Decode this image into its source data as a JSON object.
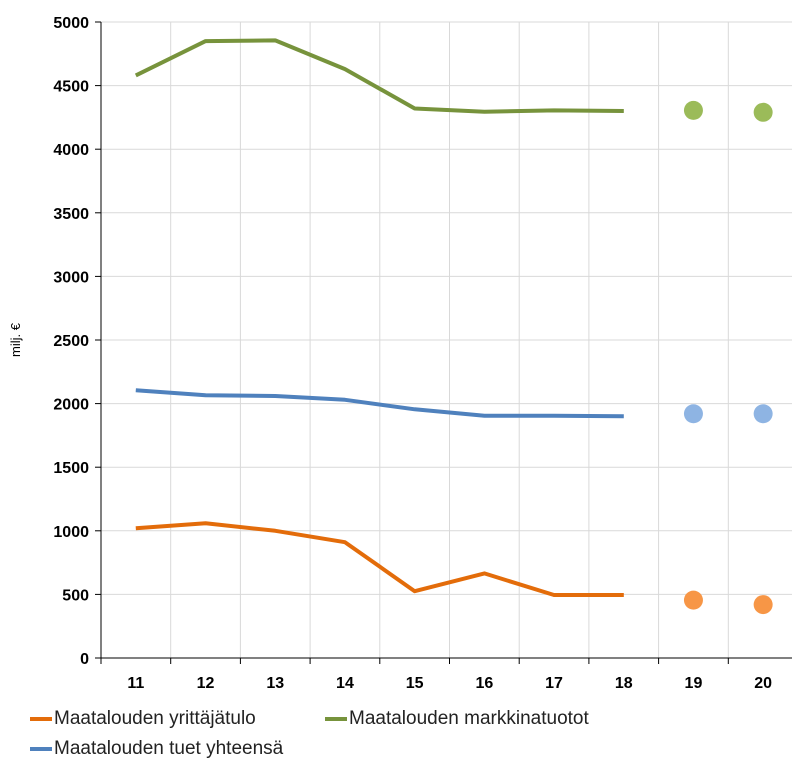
{
  "chart_data": {
    "type": "line",
    "categories": [
      "11",
      "12",
      "13",
      "14",
      "15",
      "16",
      "17",
      "18",
      "19",
      "20"
    ],
    "ylabel": "milj. €",
    "ylim": [
      0,
      5000
    ],
    "yticks": [
      0,
      500,
      1000,
      1500,
      2000,
      2500,
      3000,
      3500,
      4000,
      4500,
      5000
    ],
    "grid": true,
    "legend_position": "bottom",
    "series": [
      {
        "name": "Maatalouden yrittäjätulo",
        "color": "#e36c0a",
        "marker_color": "#f79646",
        "values": [
          1020,
          1060,
          1000,
          910,
          525,
          665,
          495,
          495,
          null,
          null
        ],
        "forecast": [
          null,
          null,
          null,
          null,
          null,
          null,
          null,
          null,
          455,
          420
        ]
      },
      {
        "name": "Maatalouden markkinatuotot",
        "color": "#77933c",
        "marker_color": "#9bbb59",
        "values": [
          4580,
          4850,
          4855,
          4630,
          4320,
          4295,
          4305,
          4300,
          null,
          null
        ],
        "forecast": [
          null,
          null,
          null,
          null,
          null,
          null,
          null,
          null,
          4305,
          4290
        ]
      },
      {
        "name": "Maatalouden tuet yhteensä",
        "color": "#4f81bd",
        "marker_color": "#8eb4e3",
        "values": [
          2105,
          2065,
          2060,
          2030,
          1955,
          1905,
          1905,
          1900,
          null,
          null
        ],
        "forecast": [
          null,
          null,
          null,
          null,
          null,
          null,
          null,
          null,
          1920,
          1920
        ]
      }
    ]
  }
}
